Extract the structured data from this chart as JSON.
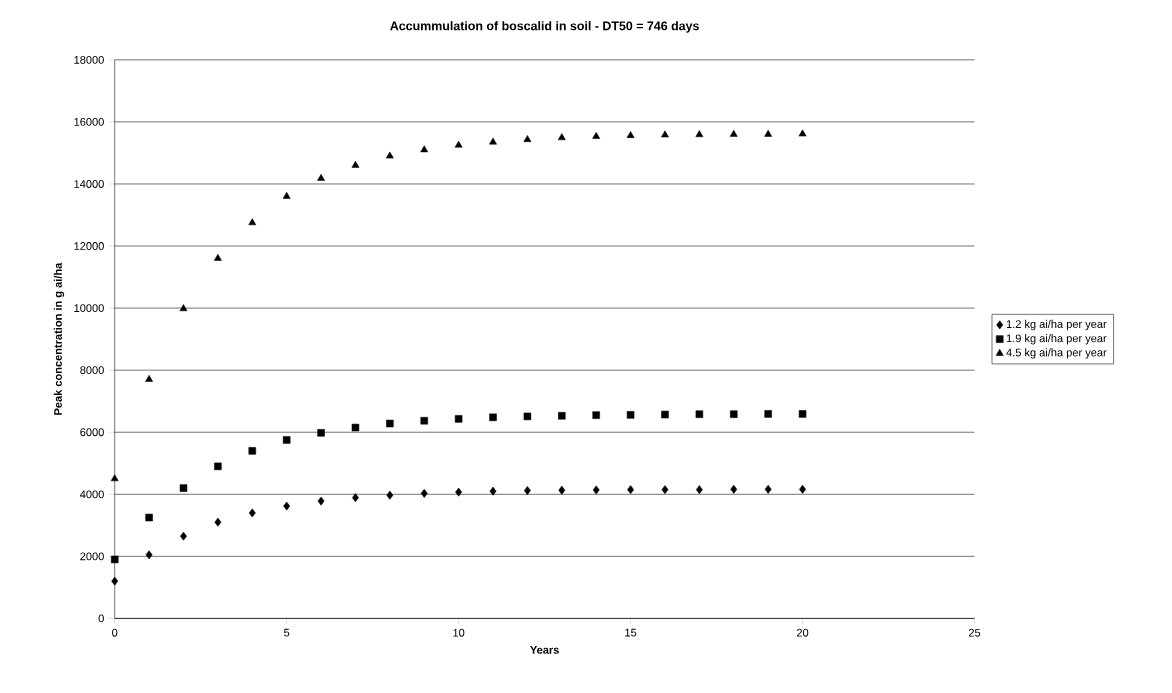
{
  "chart_data": {
    "type": "scatter",
    "title": "Accummulation of boscalid in soil - DT50 = 746 days",
    "xlabel": "Years",
    "ylabel": "Peak concentration in g ai/ha",
    "x": [
      0,
      1,
      2,
      3,
      4,
      5,
      6,
      7,
      8,
      9,
      10,
      11,
      12,
      13,
      14,
      15,
      16,
      17,
      18,
      19,
      20
    ],
    "series": [
      {
        "name": "1.2 kg ai/ha per year",
        "color": "#000000",
        "marker": "diamond",
        "values": [
          1200,
          2050,
          2650,
          3100,
          3400,
          3620,
          3780,
          3890,
          3970,
          4030,
          4070,
          4100,
          4120,
          4130,
          4140,
          4150,
          4150,
          4150,
          4160,
          4160,
          4160
        ]
      },
      {
        "name": "1.9 kg ai/ha per year",
        "color": "#000000",
        "marker": "square",
        "values": [
          1900,
          3250,
          4200,
          4900,
          5400,
          5750,
          5980,
          6150,
          6280,
          6370,
          6430,
          6480,
          6510,
          6530,
          6550,
          6560,
          6570,
          6580,
          6580,
          6590,
          6590
        ]
      },
      {
        "name": "4.5 kg ai/ha per year",
        "color": "#000000",
        "marker": "triangle",
        "values": [
          4500,
          7700,
          9980,
          11600,
          12750,
          13600,
          14180,
          14600,
          14900,
          15100,
          15250,
          15350,
          15430,
          15490,
          15530,
          15560,
          15580,
          15590,
          15600,
          15600,
          15610
        ]
      }
    ],
    "xlim": [
      0,
      25
    ],
    "xticks": [
      0,
      5,
      10,
      15,
      20,
      25
    ],
    "ylim": [
      0,
      18000
    ],
    "yticks": [
      0,
      2000,
      4000,
      6000,
      8000,
      10000,
      12000,
      14000,
      16000,
      18000
    ],
    "grid": "y",
    "legend": "right"
  }
}
